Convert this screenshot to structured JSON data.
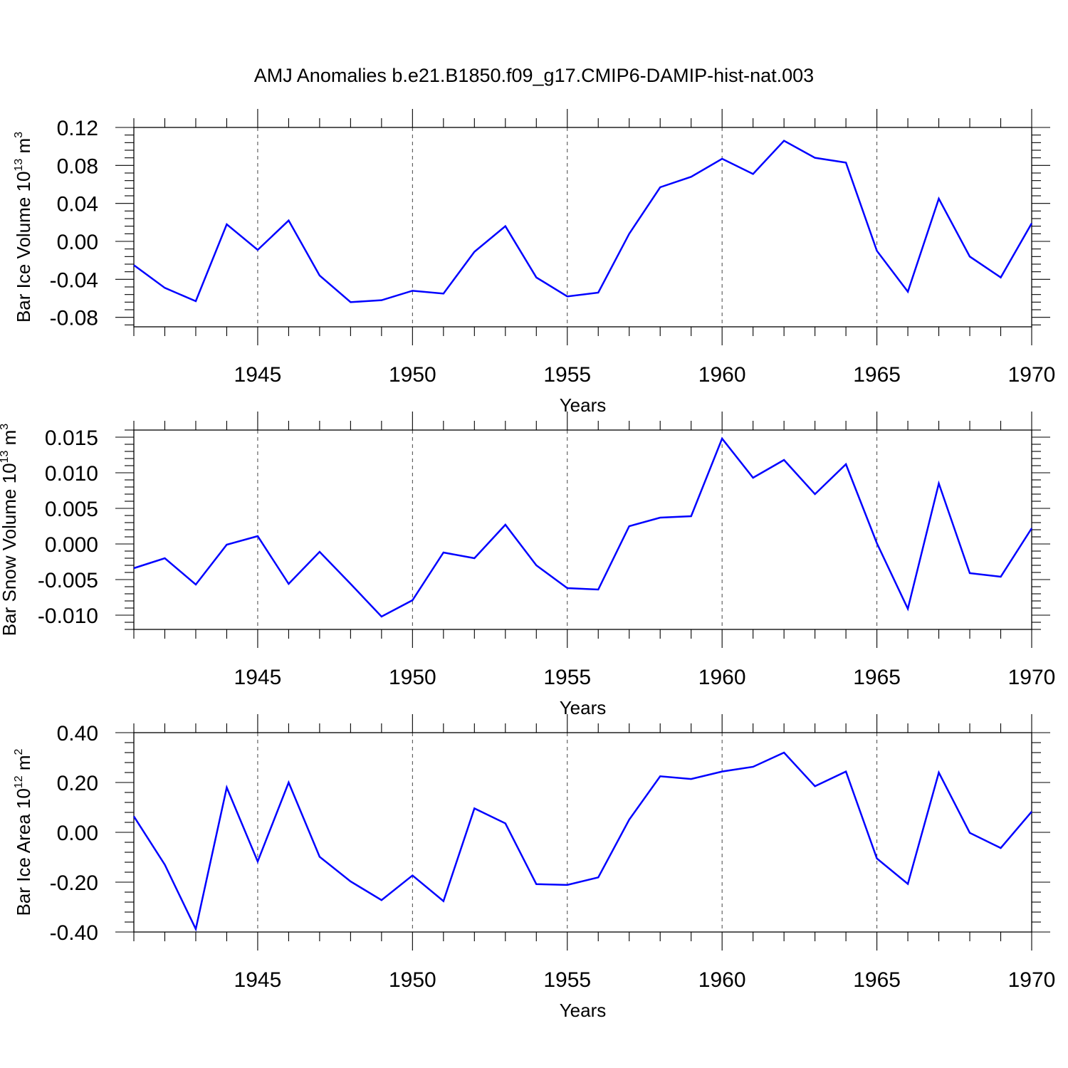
{
  "figure": {
    "title": "AMJ Anomalies b.e21.B1850.f09_g17.CMIP6-DAMIP-hist-nat.003"
  },
  "chart_data": [
    {
      "type": "line",
      "ylabel": "Bar Ice Volume 10",
      "ylabel_exp": "13",
      "ylabel_unit": " m",
      "ylabel_unit_exp": "3",
      "xlabel": "Years",
      "xlim": [
        1941,
        1970
      ],
      "ylim": [
        -0.09,
        0.12
      ],
      "yticks": [
        0.12,
        0.08,
        0.04,
        0.0,
        -0.04,
        -0.08
      ],
      "ytick_labels": [
        "0.12",
        "0.08",
        "0.04",
        "0.00",
        "-0.04",
        "-0.08"
      ],
      "xticks": [
        1945,
        1950,
        1955,
        1960,
        1965,
        1970
      ],
      "xtick_labels": [
        "1945",
        "1950",
        "1955",
        "1960",
        "1965",
        "1970"
      ],
      "grid": "vertical dashed at major x ticks",
      "color": "#0000ff",
      "x": [
        1941,
        1942,
        1943,
        1944,
        1945,
        1946,
        1947,
        1948,
        1949,
        1950,
        1951,
        1952,
        1953,
        1954,
        1955,
        1956,
        1957,
        1958,
        1959,
        1960,
        1961,
        1962,
        1963,
        1964,
        1965,
        1966,
        1967,
        1968,
        1969,
        1970
      ],
      "y": [
        -0.025,
        -0.049,
        -0.063,
        0.018,
        -0.009,
        0.022,
        -0.036,
        -0.064,
        -0.062,
        -0.052,
        -0.055,
        -0.011,
        0.016,
        -0.038,
        -0.058,
        -0.054,
        0.008,
        0.057,
        0.068,
        0.087,
        0.071,
        0.106,
        0.088,
        0.083,
        -0.01,
        -0.053,
        0.045,
        -0.016,
        -0.038,
        0.019
      ]
    },
    {
      "type": "line",
      "ylabel": "Bar Snow Volume 10",
      "ylabel_exp": "13",
      "ylabel_unit": " m",
      "ylabel_unit_exp": "3",
      "xlabel": "Years",
      "xlim": [
        1941,
        1970
      ],
      "ylim": [
        -0.012,
        0.016
      ],
      "yticks": [
        0.015,
        0.01,
        0.005,
        0.0,
        -0.005,
        -0.01
      ],
      "ytick_labels": [
        "0.015",
        "0.010",
        "0.005",
        "0.000",
        "-0.005",
        "-0.010"
      ],
      "xticks": [
        1945,
        1950,
        1955,
        1960,
        1965,
        1970
      ],
      "xtick_labels": [
        "1945",
        "1950",
        "1955",
        "1960",
        "1965",
        "1970"
      ],
      "grid": "vertical dashed at major x ticks",
      "color": "#0000ff",
      "x": [
        1941,
        1942,
        1943,
        1944,
        1945,
        1946,
        1947,
        1948,
        1949,
        1950,
        1951,
        1952,
        1953,
        1954,
        1955,
        1956,
        1957,
        1958,
        1959,
        1960,
        1961,
        1962,
        1963,
        1964,
        1965,
        1966,
        1967,
        1968,
        1969,
        1970
      ],
      "y": [
        -0.0034,
        -0.002,
        -0.0057,
        -0.0001,
        0.0011,
        -0.0056,
        -0.0011,
        -0.0056,
        -0.0102,
        -0.0079,
        -0.0012,
        -0.002,
        0.0027,
        -0.003,
        -0.0062,
        -0.0064,
        0.0025,
        0.0037,
        0.0039,
        0.0148,
        0.0093,
        0.0118,
        0.007,
        0.0112,
        0.0001,
        -0.0091,
        0.0085,
        -0.0041,
        -0.0046,
        0.0022
      ]
    },
    {
      "type": "line",
      "ylabel": "Bar Ice Area 10",
      "ylabel_exp": "12",
      "ylabel_unit": " m",
      "ylabel_unit_exp": "2",
      "xlabel": "Years",
      "xlim": [
        1941,
        1970
      ],
      "ylim": [
        -0.4,
        0.4
      ],
      "yticks": [
        0.4,
        0.2,
        0.0,
        -0.2,
        -0.4
      ],
      "ytick_labels": [
        "0.40",
        "0.20",
        "0.00",
        "-0.20",
        "-0.40"
      ],
      "xticks": [
        1945,
        1950,
        1955,
        1960,
        1965,
        1970
      ],
      "xtick_labels": [
        "1945",
        "1950",
        "1955",
        "1960",
        "1965",
        "1970"
      ],
      "grid": "vertical dashed at major x ticks",
      "color": "#0000ff",
      "x": [
        1941,
        1942,
        1943,
        1944,
        1945,
        1946,
        1947,
        1948,
        1949,
        1950,
        1951,
        1952,
        1953,
        1954,
        1955,
        1956,
        1957,
        1958,
        1959,
        1960,
        1961,
        1962,
        1963,
        1964,
        1965,
        1966,
        1967,
        1968,
        1969,
        1970
      ],
      "y": [
        0.064,
        -0.13,
        -0.388,
        0.18,
        -0.117,
        0.2,
        -0.098,
        -0.197,
        -0.272,
        -0.173,
        -0.276,
        0.096,
        0.036,
        -0.208,
        -0.211,
        -0.181,
        0.051,
        0.225,
        0.214,
        0.244,
        0.263,
        0.32,
        0.185,
        0.244,
        -0.105,
        -0.207,
        0.24,
        -0.002,
        -0.063,
        0.083
      ]
    }
  ]
}
